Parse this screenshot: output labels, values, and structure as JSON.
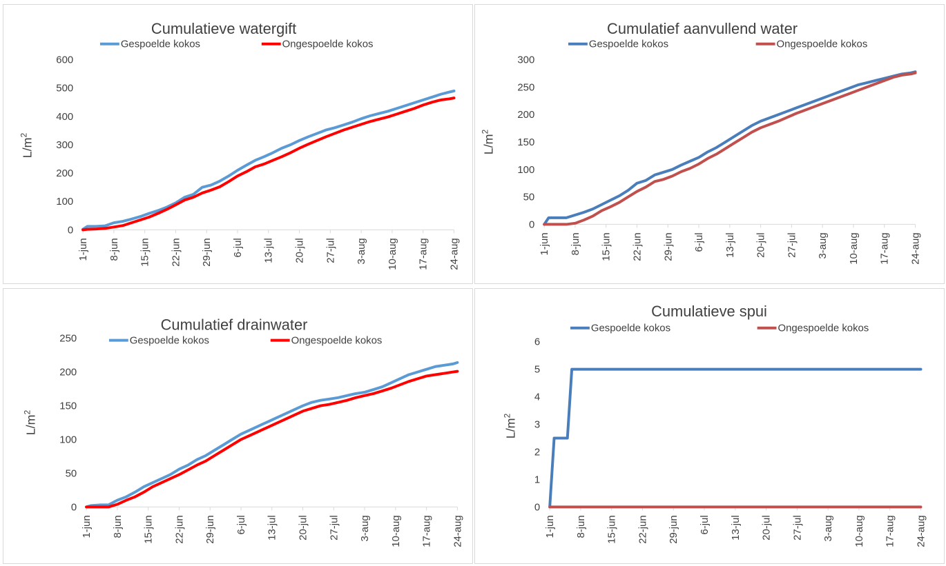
{
  "charts": [
    {
      "id": "tl",
      "title": "Cumulatieve watergift",
      "ylabel": "L/m",
      "ylabel_sup": "2"
    },
    {
      "id": "tr",
      "title": "Cumulatief aanvullend water",
      "ylabel": "L/m",
      "ylabel_sup": "2"
    },
    {
      "id": "bl",
      "title": "Cumulatief drainwater",
      "ylabel": "L/m",
      "ylabel_sup": "2"
    },
    {
      "id": "br",
      "title": "Cumulatieve spui",
      "ylabel": "L/m",
      "ylabel_sup": "2"
    }
  ],
  "chart_data": [
    {
      "type": "line",
      "title": "Cumulatieve watergift",
      "ylabel": "L/m²",
      "ylim": [
        0,
        600
      ],
      "yticks": [
        0,
        100,
        200,
        300,
        400,
        500,
        600
      ],
      "xticks": [
        "1-jun",
        "8-jun",
        "15-jun",
        "22-jun",
        "29-jun",
        "6-jul",
        "13-jul",
        "20-jul",
        "27-jul",
        "3-aug",
        "10-aug",
        "17-aug",
        "24-aug"
      ],
      "legend": "top",
      "grid": false,
      "series": [
        {
          "name": "Gespoelde kokos",
          "color": "#5b9bd5",
          "x": [
            1,
            2,
            4,
            6,
            8,
            10,
            12,
            14,
            16,
            18,
            20,
            22,
            24,
            26,
            28,
            30,
            32,
            34,
            36,
            38,
            40,
            42,
            44,
            46,
            48,
            50,
            52,
            54,
            56,
            58,
            60,
            62,
            64,
            66,
            68,
            70,
            72,
            74,
            76,
            78,
            80,
            82,
            84,
            86
          ],
          "y": [
            2,
            12,
            12,
            14,
            25,
            30,
            38,
            47,
            58,
            68,
            80,
            95,
            115,
            125,
            150,
            158,
            172,
            190,
            210,
            228,
            245,
            258,
            272,
            288,
            300,
            315,
            328,
            340,
            352,
            360,
            370,
            380,
            392,
            402,
            410,
            418,
            428,
            438,
            448,
            458,
            468,
            478,
            486,
            490
          ]
        },
        {
          "name": "Ongespoelde kokos",
          "color": "#ff0000",
          "x": [
            1,
            2,
            4,
            6,
            8,
            10,
            12,
            14,
            16,
            18,
            20,
            22,
            24,
            26,
            28,
            30,
            32,
            34,
            36,
            38,
            40,
            42,
            44,
            46,
            48,
            50,
            52,
            54,
            56,
            58,
            60,
            62,
            64,
            66,
            68,
            70,
            72,
            74,
            76,
            78,
            80,
            82,
            84,
            86
          ],
          "y": [
            0,
            2,
            3,
            5,
            10,
            15,
            25,
            35,
            45,
            58,
            72,
            88,
            105,
            115,
            130,
            140,
            152,
            170,
            190,
            205,
            222,
            232,
            245,
            258,
            272,
            288,
            302,
            315,
            328,
            340,
            352,
            362,
            372,
            382,
            390,
            398,
            408,
            418,
            428,
            440,
            450,
            458,
            462,
            465
          ]
        }
      ]
    },
    {
      "type": "line",
      "title": "Cumulatief aanvullend water",
      "ylabel": "L/m²",
      "ylim": [
        0,
        300
      ],
      "yticks": [
        0,
        50,
        100,
        150,
        200,
        250,
        300
      ],
      "xticks": [
        "1-jun",
        "8-jun",
        "15-jun",
        "22-jun",
        "29-jun",
        "6-jul",
        "13-jul",
        "20-jul",
        "27-jul",
        "3-aug",
        "10-aug",
        "17-aug",
        "24-aug"
      ],
      "legend": "top",
      "grid": false,
      "series": [
        {
          "name": "Gespoelde kokos",
          "color": "#4a7ebb",
          "x": [
            1,
            2,
            4,
            6,
            8,
            10,
            12,
            14,
            16,
            18,
            20,
            22,
            24,
            26,
            28,
            30,
            32,
            34,
            36,
            38,
            40,
            42,
            44,
            46,
            48,
            50,
            52,
            54,
            56,
            58,
            60,
            62,
            64,
            66,
            68,
            70,
            72,
            74,
            76,
            78,
            80,
            82,
            84,
            86
          ],
          "y": [
            0,
            12,
            12,
            12,
            17,
            22,
            28,
            36,
            44,
            52,
            62,
            75,
            80,
            90,
            95,
            100,
            108,
            115,
            122,
            132,
            140,
            150,
            160,
            170,
            180,
            188,
            194,
            200,
            206,
            212,
            218,
            224,
            230,
            236,
            242,
            248,
            254,
            258,
            262,
            266,
            270,
            274,
            276,
            278
          ]
        },
        {
          "name": "Ongespoelde kokos",
          "color": "#c0504d",
          "x": [
            1,
            2,
            4,
            6,
            8,
            10,
            12,
            14,
            16,
            18,
            20,
            22,
            24,
            26,
            28,
            30,
            32,
            34,
            36,
            38,
            40,
            42,
            44,
            46,
            48,
            50,
            52,
            54,
            56,
            58,
            60,
            62,
            64,
            66,
            68,
            70,
            72,
            74,
            76,
            78,
            80,
            82,
            84,
            86
          ],
          "y": [
            0,
            0,
            0,
            0,
            2,
            8,
            15,
            25,
            32,
            40,
            50,
            60,
            68,
            78,
            82,
            88,
            96,
            102,
            110,
            120,
            128,
            138,
            148,
            158,
            168,
            176,
            182,
            188,
            195,
            202,
            208,
            214,
            220,
            226,
            232,
            238,
            244,
            250,
            256,
            262,
            268,
            272,
            274,
            276
          ]
        }
      ]
    },
    {
      "type": "line",
      "title": "Cumulatief drainwater",
      "ylabel": "L/m²",
      "ylim": [
        0,
        250
      ],
      "yticks": [
        0,
        50,
        100,
        150,
        200,
        250
      ],
      "xticks": [
        "1-jun",
        "8-jun",
        "15-jun",
        "22-jun",
        "29-jun",
        "6-jul",
        "13-jul",
        "20-jul",
        "27-jul",
        "3-aug",
        "10-aug",
        "17-aug",
        "24-aug"
      ],
      "legend": "top",
      "grid": false,
      "series": [
        {
          "name": "Gespoelde kokos",
          "color": "#5b9bd5",
          "x": [
            1,
            2,
            4,
            6,
            8,
            10,
            12,
            14,
            16,
            18,
            20,
            22,
            24,
            26,
            28,
            30,
            32,
            34,
            36,
            38,
            40,
            42,
            44,
            46,
            48,
            50,
            52,
            54,
            56,
            58,
            60,
            62,
            64,
            66,
            68,
            70,
            72,
            74,
            76,
            78,
            80,
            82,
            84,
            86
          ],
          "y": [
            0,
            2,
            3,
            3,
            10,
            15,
            22,
            30,
            36,
            42,
            48,
            56,
            62,
            70,
            76,
            84,
            92,
            100,
            108,
            114,
            120,
            126,
            132,
            138,
            144,
            150,
            155,
            158,
            160,
            162,
            165,
            168,
            170,
            174,
            178,
            184,
            190,
            196,
            200,
            204,
            208,
            210,
            212,
            214
          ]
        },
        {
          "name": "Ongespoelde kokos",
          "color": "#ff0000",
          "x": [
            1,
            2,
            4,
            6,
            8,
            10,
            12,
            14,
            16,
            18,
            20,
            22,
            24,
            26,
            28,
            30,
            32,
            34,
            36,
            38,
            40,
            42,
            44,
            46,
            48,
            50,
            52,
            54,
            56,
            58,
            60,
            62,
            64,
            66,
            68,
            70,
            72,
            74,
            76,
            78,
            80,
            82,
            84,
            86
          ],
          "y": [
            0,
            0,
            0,
            0,
            4,
            10,
            15,
            22,
            30,
            36,
            42,
            48,
            55,
            62,
            68,
            76,
            84,
            92,
            100,
            106,
            112,
            118,
            124,
            130,
            136,
            142,
            146,
            150,
            152,
            155,
            158,
            162,
            165,
            168,
            172,
            176,
            181,
            186,
            190,
            194,
            196,
            198,
            200,
            201
          ]
        }
      ]
    },
    {
      "type": "line",
      "title": "Cumulatieve spui",
      "ylabel": "L/m²",
      "ylim": [
        0,
        6
      ],
      "yticks": [
        0,
        1,
        2,
        3,
        4,
        5,
        6
      ],
      "xticks": [
        "1-jun",
        "8-jun",
        "15-jun",
        "22-jun",
        "29-jun",
        "6-jul",
        "13-jul",
        "20-jul",
        "27-jul",
        "3-aug",
        "10-aug",
        "17-aug",
        "24-aug"
      ],
      "legend": "top",
      "grid": false,
      "series": [
        {
          "name": "Gespoelde kokos",
          "color": "#4a7ebb",
          "x": [
            1,
            2,
            5,
            6,
            85
          ],
          "y": [
            0,
            2.5,
            2.5,
            5,
            5
          ]
        },
        {
          "name": "Ongespoelde kokos",
          "color": "#c0504d",
          "x": [
            1,
            85
          ],
          "y": [
            0,
            0
          ]
        }
      ]
    }
  ]
}
